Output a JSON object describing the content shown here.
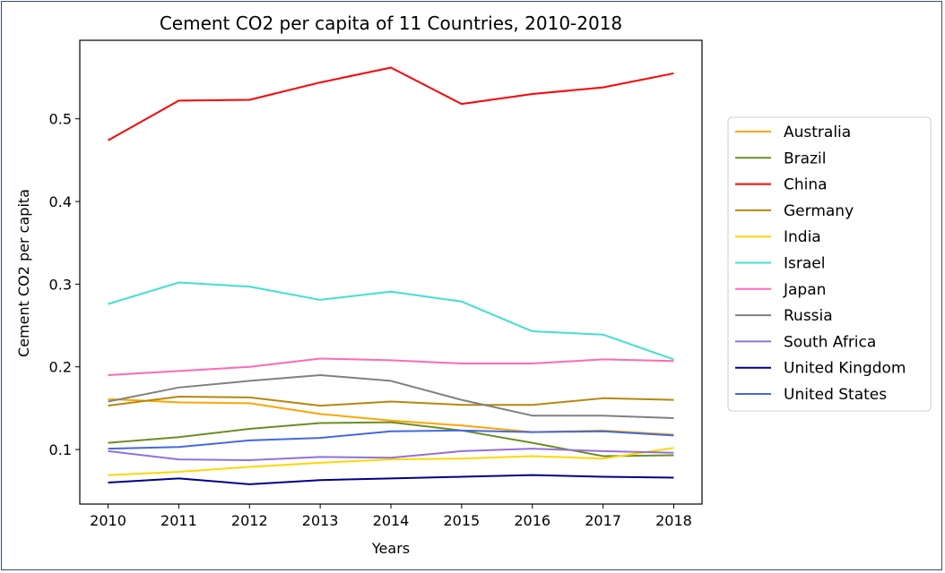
{
  "chart_data": {
    "type": "line",
    "title": "Cement CO2 per capita of 11 Countries, 2010-2018",
    "xlabel": "Years",
    "ylabel": "Cement CO2 per capita",
    "x": [
      2010,
      2011,
      2012,
      2013,
      2014,
      2015,
      2016,
      2017,
      2018
    ],
    "x_tick_labels": [
      "2010",
      "2011",
      "2012",
      "2013",
      "2014",
      "2015",
      "2016",
      "2017",
      "2018"
    ],
    "y_ticks": [
      0.1,
      0.2,
      0.3,
      0.4,
      0.5
    ],
    "y_tick_labels": [
      "0.1",
      "0.2",
      "0.3",
      "0.4",
      "0.5"
    ],
    "xlim": [
      2009.6,
      2018.4
    ],
    "ylim": [
      0.034,
      0.595
    ],
    "legend_position": "right-outside",
    "series": [
      {
        "name": "Australia",
        "color": "#ffa500",
        "values": [
          0.161,
          0.157,
          0.156,
          0.143,
          0.135,
          0.129,
          0.121,
          0.123,
          0.118
        ]
      },
      {
        "name": "Brazil",
        "color": "#6b8e23",
        "values": [
          0.108,
          0.115,
          0.125,
          0.132,
          0.133,
          0.123,
          0.108,
          0.092,
          0.093
        ]
      },
      {
        "name": "China",
        "color": "#ff0000",
        "values": [
          0.474,
          0.522,
          0.523,
          0.544,
          0.562,
          0.518,
          0.53,
          0.538,
          0.555
        ]
      },
      {
        "name": "Germany",
        "color": "#b8860b",
        "values": [
          0.153,
          0.164,
          0.163,
          0.153,
          0.158,
          0.154,
          0.154,
          0.162,
          0.16
        ]
      },
      {
        "name": "India",
        "color": "#ffd700",
        "values": [
          0.069,
          0.073,
          0.079,
          0.084,
          0.088,
          0.089,
          0.092,
          0.089,
          0.102
        ]
      },
      {
        "name": "Israel",
        "color": "#40e0d0",
        "values": [
          0.276,
          0.302,
          0.297,
          0.281,
          0.291,
          0.279,
          0.243,
          0.239,
          0.209
        ]
      },
      {
        "name": "Japan",
        "color": "#ff69b4",
        "values": [
          0.19,
          0.195,
          0.2,
          0.21,
          0.208,
          0.204,
          0.204,
          0.209,
          0.207
        ]
      },
      {
        "name": "Russia",
        "color": "#808080",
        "values": [
          0.158,
          0.175,
          0.183,
          0.19,
          0.183,
          0.16,
          0.141,
          0.141,
          0.138
        ]
      },
      {
        "name": "South Africa",
        "color": "#9370db",
        "values": [
          0.098,
          0.088,
          0.087,
          0.091,
          0.09,
          0.098,
          0.101,
          0.098,
          0.096
        ]
      },
      {
        "name": "United Kingdom",
        "color": "#00008b",
        "values": [
          0.06,
          0.065,
          0.058,
          0.063,
          0.065,
          0.067,
          0.069,
          0.067,
          0.066
        ]
      },
      {
        "name": "United States",
        "color": "#4169e1",
        "values": [
          0.101,
          0.103,
          0.111,
          0.114,
          0.122,
          0.123,
          0.121,
          0.122,
          0.117
        ]
      }
    ]
  }
}
